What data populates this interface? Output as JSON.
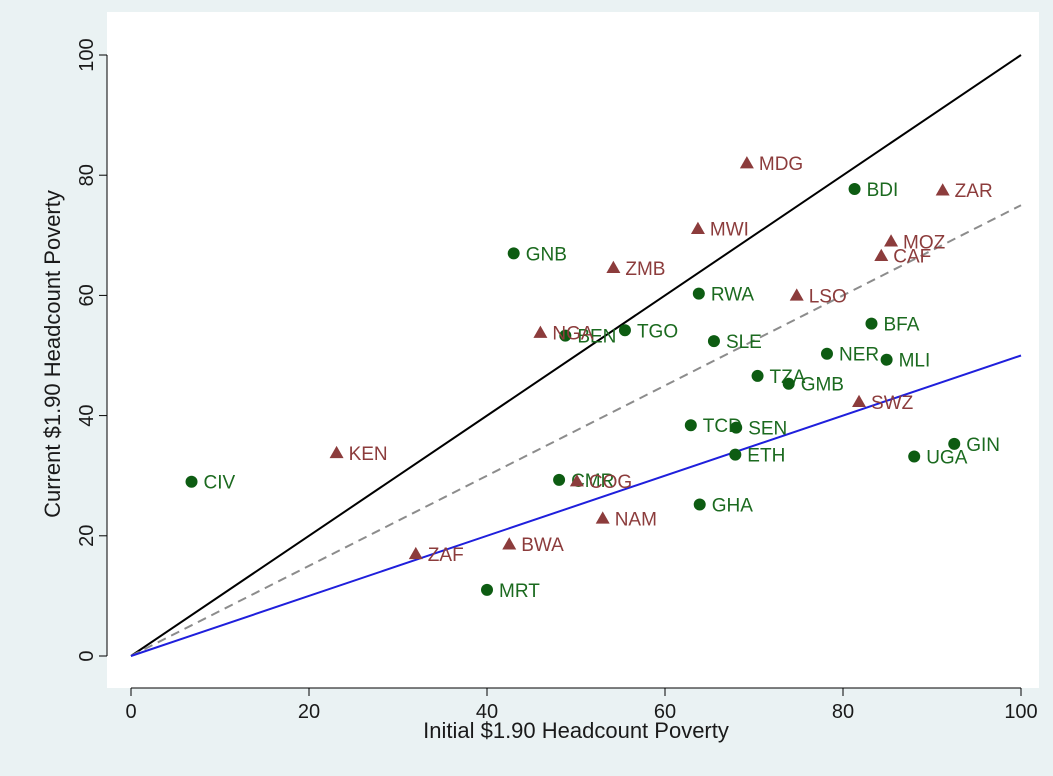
{
  "chart_data": {
    "type": "scatter",
    "title": "",
    "xlabel": "Initial $1.90 Headcount Poverty",
    "ylabel": "Current $1.90 Headcount Poverty",
    "xlim": [
      0,
      100
    ],
    "ylim": [
      0,
      100
    ],
    "xticks": [
      0,
      20,
      40,
      60,
      80,
      100
    ],
    "yticks": [
      0,
      20,
      40,
      60,
      80,
      100
    ],
    "grid": false,
    "legend": "none",
    "reference_lines": [
      {
        "slope": 1.0,
        "style": "solid",
        "color": "#000000"
      },
      {
        "slope": 0.75,
        "style": "dashed",
        "color": "#8c8c8c"
      },
      {
        "slope": 0.5,
        "style": "solid",
        "color": "#1f1fdc"
      }
    ],
    "series": [
      {
        "marker": "circle",
        "color": "#0d5c12",
        "label_color": "#1b6a1f",
        "points": [
          {
            "label": "CIV",
            "x": 6.8,
            "y": 29.0
          },
          {
            "label": "GNB",
            "x": 43.0,
            "y": 67.0
          },
          {
            "label": "BEN",
            "x": 48.8,
            "y": 53.3
          },
          {
            "label": "TGO",
            "x": 55.5,
            "y": 54.2
          },
          {
            "label": "RWA",
            "x": 63.8,
            "y": 60.3
          },
          {
            "label": "SLE",
            "x": 65.5,
            "y": 52.4
          },
          {
            "label": "BDI",
            "x": 81.3,
            "y": 77.7
          },
          {
            "label": "BFA",
            "x": 83.2,
            "y": 55.3
          },
          {
            "label": "NER",
            "x": 78.2,
            "y": 50.3
          },
          {
            "label": "MLI",
            "x": 84.9,
            "y": 49.3
          },
          {
            "label": "TZA",
            "x": 70.4,
            "y": 46.6
          },
          {
            "label": "GMB",
            "x": 73.9,
            "y": 45.3
          },
          {
            "label": "TCD",
            "x": 62.9,
            "y": 38.4
          },
          {
            "label": "SEN",
            "x": 68.0,
            "y": 38.0
          },
          {
            "label": "ETH",
            "x": 67.9,
            "y": 33.5
          },
          {
            "label": "GIN",
            "x": 92.5,
            "y": 35.3
          },
          {
            "label": "UGA",
            "x": 88.0,
            "y": 33.2
          },
          {
            "label": "CMR",
            "x": 48.1,
            "y": 29.3
          },
          {
            "label": "GHA",
            "x": 63.9,
            "y": 25.2
          },
          {
            "label": "MRT",
            "x": 40.0,
            "y": 11.0
          }
        ]
      },
      {
        "marker": "triangle",
        "color": "#8c3c3c",
        "label_color": "#8c3c3c",
        "points": [
          {
            "label": "MDG",
            "x": 69.2,
            "y": 82.0
          },
          {
            "label": "ZAR",
            "x": 91.2,
            "y": 77.5
          },
          {
            "label": "MWI",
            "x": 63.7,
            "y": 71.1
          },
          {
            "label": "MOZ",
            "x": 85.4,
            "y": 69.0
          },
          {
            "label": "CAF",
            "x": 84.3,
            "y": 66.6
          },
          {
            "label": "ZMB",
            "x": 54.2,
            "y": 64.6
          },
          {
            "label": "LSO",
            "x": 74.8,
            "y": 60.0
          },
          {
            "label": "NGA",
            "x": 46.0,
            "y": 53.8
          },
          {
            "label": "SWZ",
            "x": 81.8,
            "y": 42.3
          },
          {
            "label": "KEN",
            "x": 23.1,
            "y": 33.8
          },
          {
            "label": "COG",
            "x": 50.1,
            "y": 29.1
          },
          {
            "label": "NAM",
            "x": 53.0,
            "y": 22.9
          },
          {
            "label": "BWA",
            "x": 42.5,
            "y": 18.6
          },
          {
            "label": "ZAF",
            "x": 32.0,
            "y": 17.0
          }
        ]
      }
    ]
  }
}
